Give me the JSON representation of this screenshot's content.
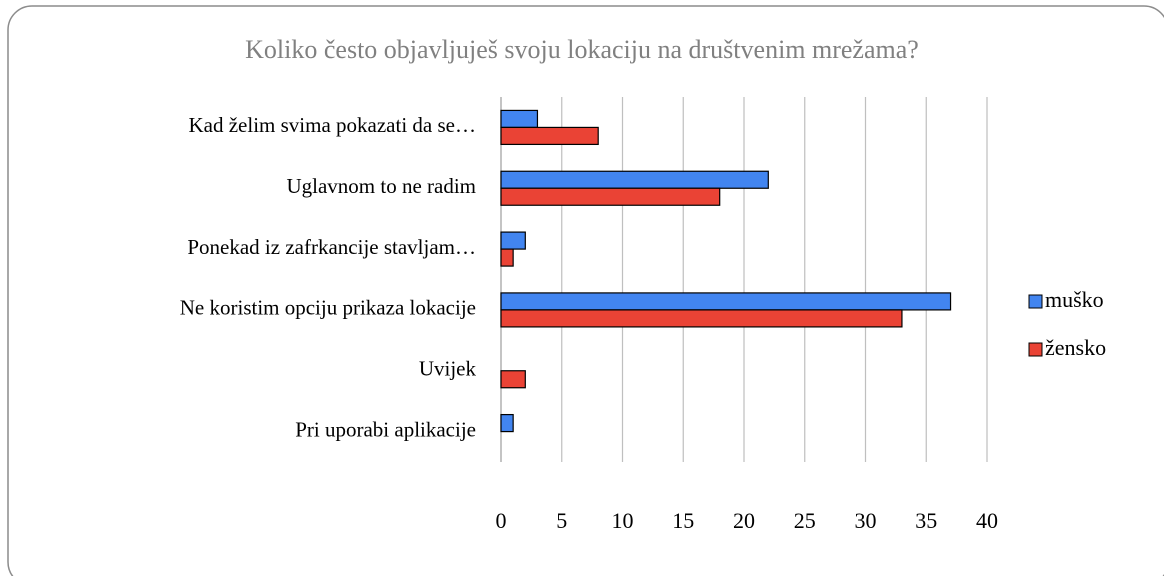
{
  "chart_data": {
    "type": "bar",
    "orientation": "horizontal",
    "title": "Koliko često objavljuješ svoju lokaciju na društvenim mrežama?",
    "categories": [
      "Kad želim svima pokazati da se…",
      "Uglavnom to ne radim",
      "Ponekad iz zafrkancije stavljam…",
      "Ne koristim opciju prikaza lokacije",
      "Uvijek",
      "Pri uporabi aplikacije"
    ],
    "series": [
      {
        "name": "muško",
        "color": "#4285f0",
        "values": [
          3,
          22,
          2,
          37,
          0,
          1
        ]
      },
      {
        "name": "žensko",
        "color": "#ea4335",
        "values": [
          8,
          18,
          1,
          33,
          2,
          0
        ]
      }
    ],
    "xlim": [
      0,
      40
    ],
    "xticks": [
      0,
      5,
      10,
      15,
      20,
      25,
      30,
      35,
      40
    ],
    "grid": true,
    "legend": "right"
  }
}
